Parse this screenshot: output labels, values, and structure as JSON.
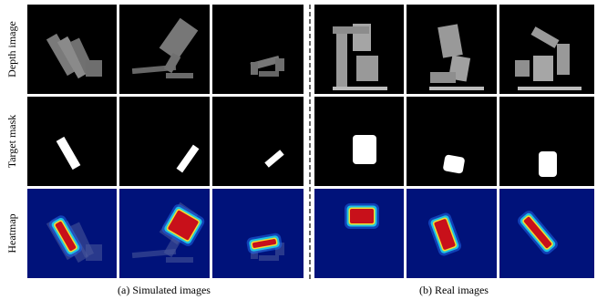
{
  "figure": {
    "row_labels": [
      "Depth image",
      "Target mask",
      "Heatmap"
    ],
    "captions": [
      "(a) Simulated images",
      "(b) Real images"
    ]
  }
}
